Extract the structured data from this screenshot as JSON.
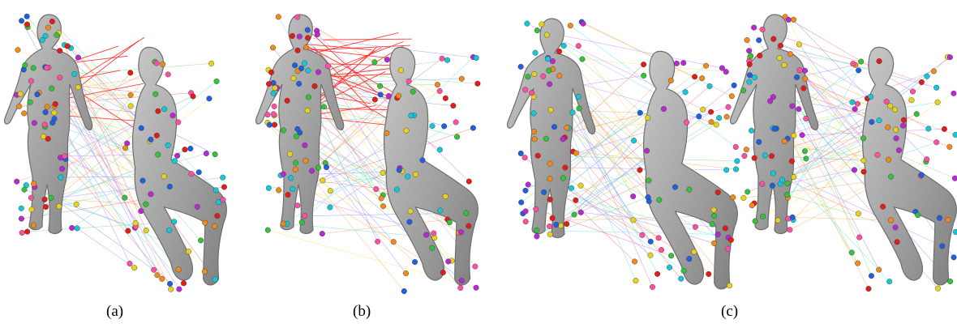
{
  "captions": {
    "a": "(a)",
    "b": "(b)",
    "c": "(c)"
  },
  "panels": [
    {
      "id": "a",
      "description_kind": "standing-to-sitting human mesh correspondence",
      "mismatch_lines": "few"
    },
    {
      "id": "b",
      "description_kind": "standing-to-sitting human mesh correspondence",
      "mismatch_lines": "many"
    },
    {
      "id": "c",
      "description_kind": "standing-to-sitting human mesh correspondence (two pairs)",
      "mismatch_lines": "none"
    }
  ],
  "colors": {
    "mesh_fill": "#a9a9a9",
    "mesh_stroke": "#6e6e6e",
    "mismatch_line": "#ff2a2a",
    "marker_palette": [
      "#e21b1b",
      "#1f5fe0",
      "#35c23a",
      "#12c8d9",
      "#f08a1c",
      "#b72ad1",
      "#e8d21a",
      "#ff4fa3"
    ]
  }
}
